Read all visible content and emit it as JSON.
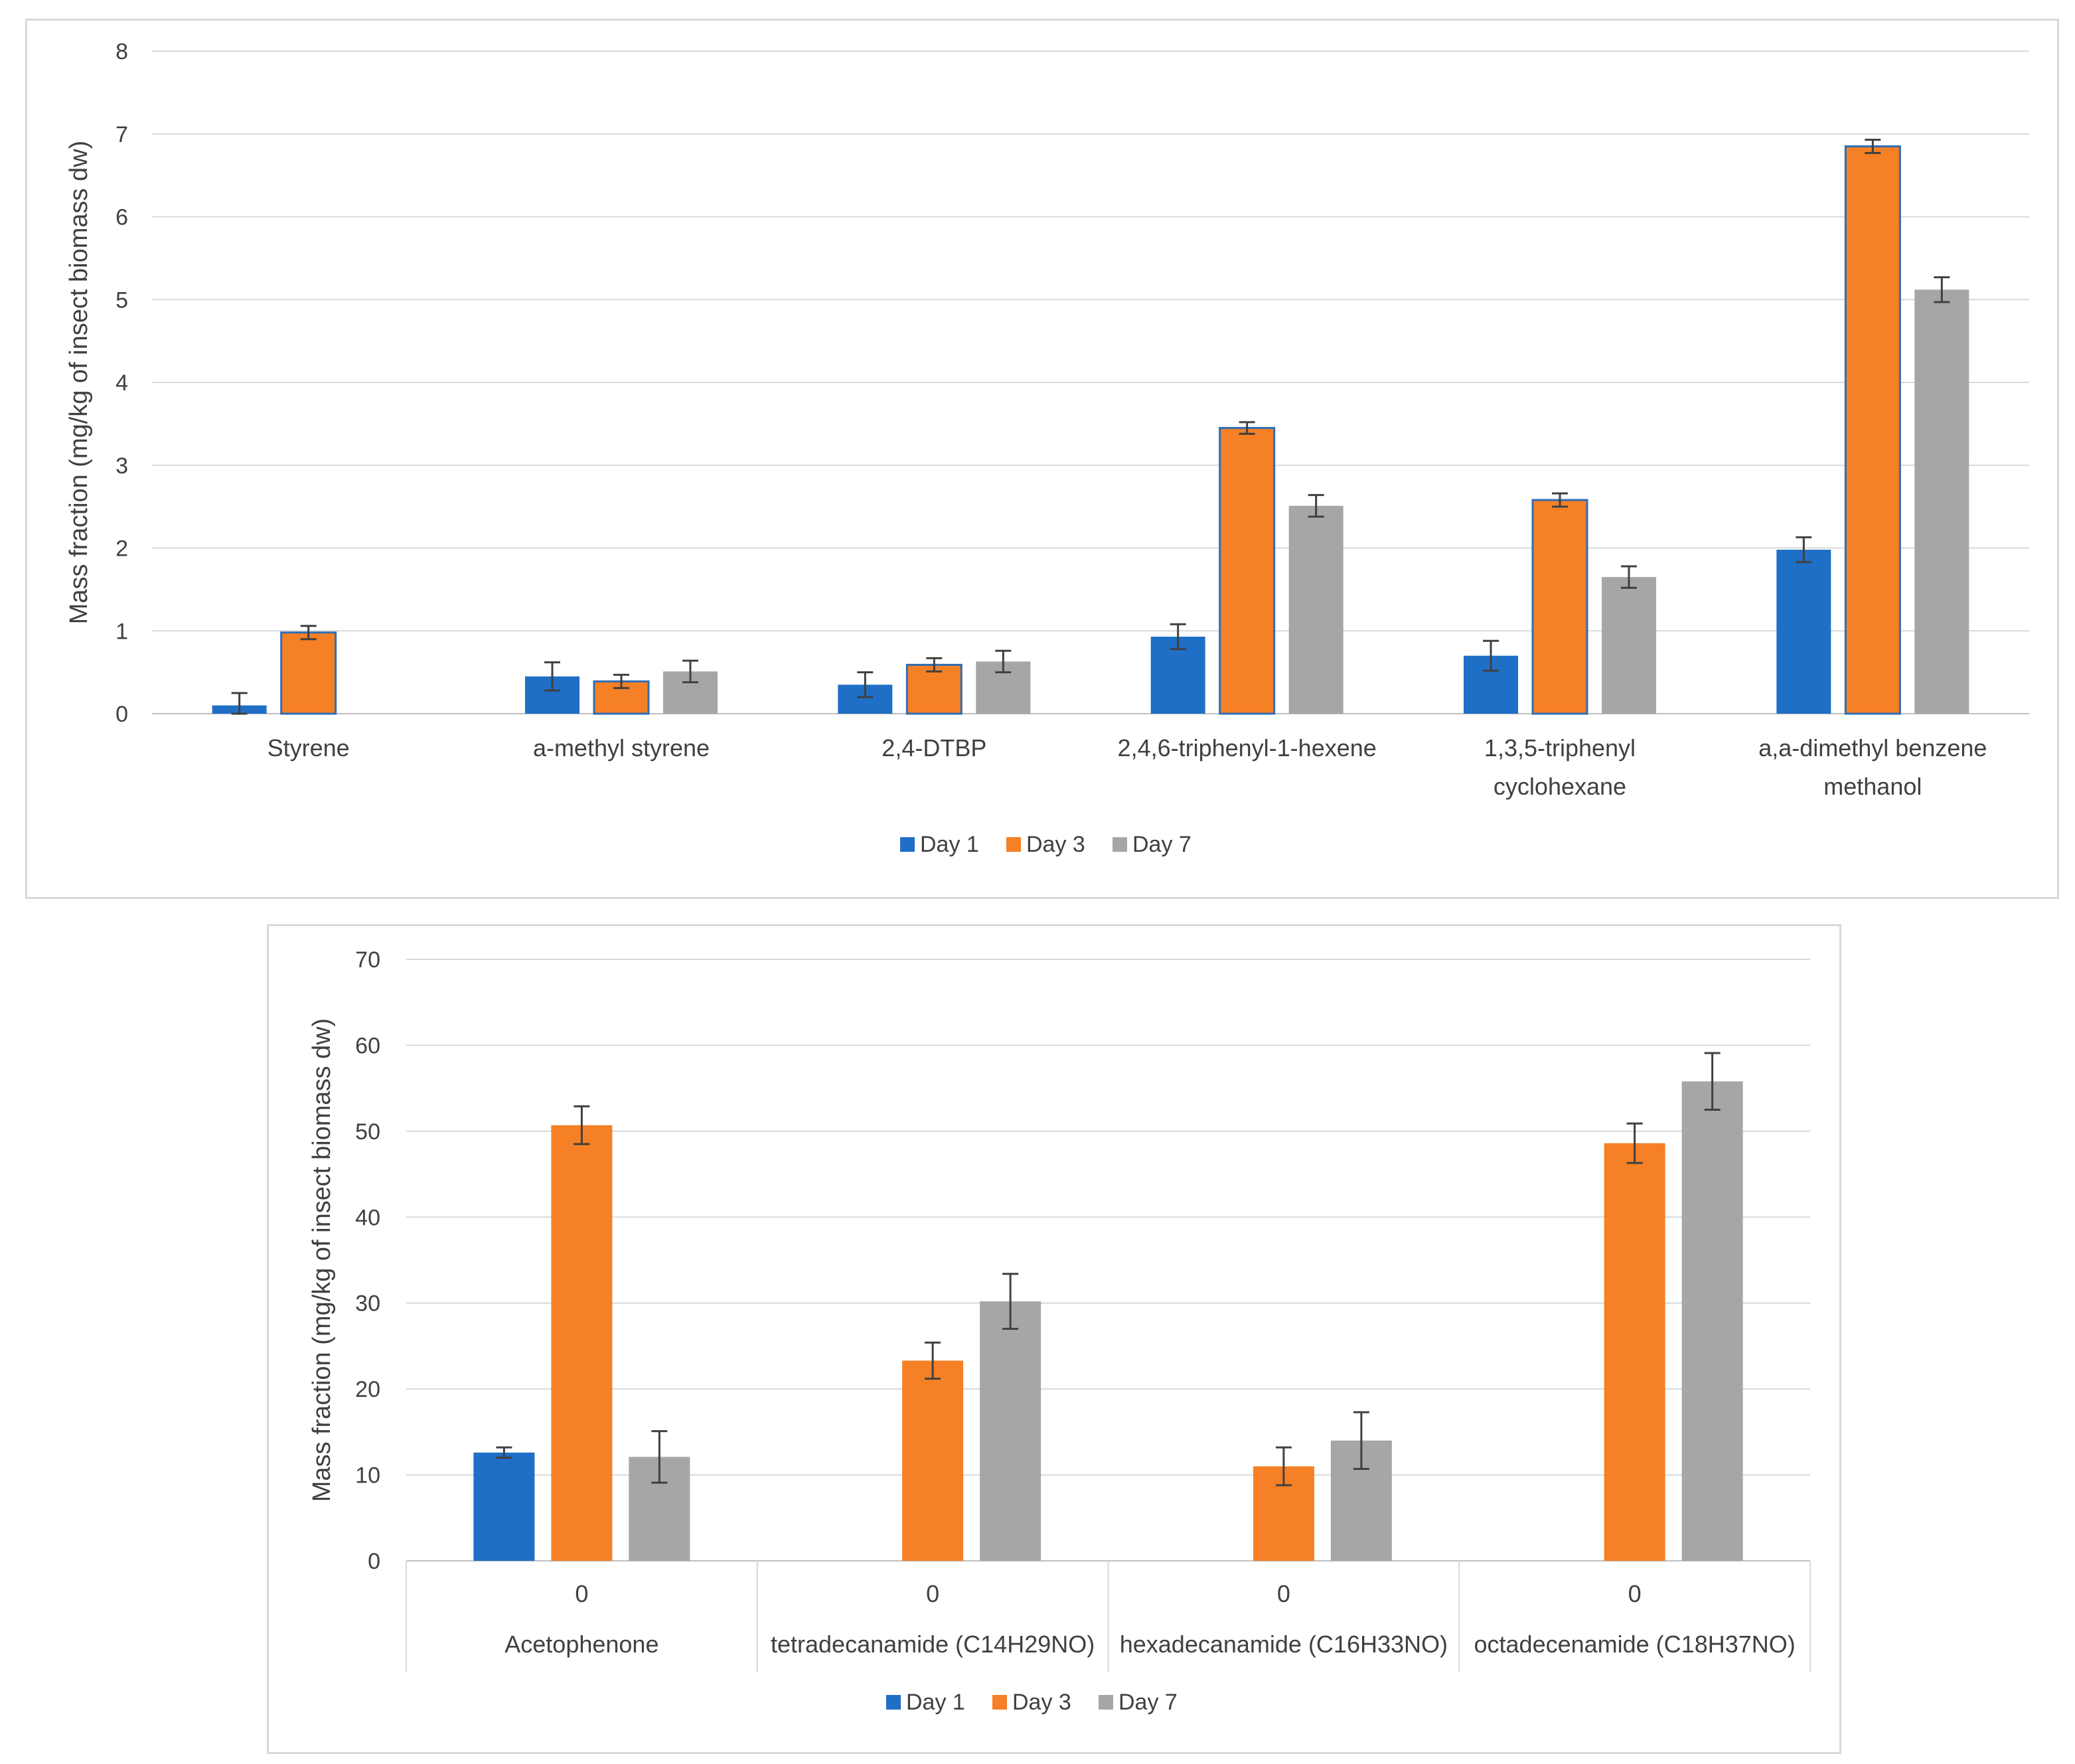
{
  "charts": [
    {
      "id": "top",
      "chart_data": {
        "type": "bar",
        "title": "",
        "ylabel": "Mass fraction (mg/kg of insect biomass dw)",
        "xlabel": "",
        "ylim": [
          0,
          8
        ],
        "yticks": [
          0,
          1,
          2,
          3,
          4,
          5,
          6,
          7,
          8
        ],
        "grid": true,
        "legend_position": "bottom",
        "categories": [
          [
            "Styrene"
          ],
          [
            "a-methyl styrene"
          ],
          [
            "2,4-DTBP"
          ],
          [
            "2,4,6-triphenyl-1-hexene"
          ],
          [
            "1,3,5-triphenyl",
            "cyclohexane"
          ],
          [
            "a,a-dimethyl benzene",
            "methanol"
          ]
        ],
        "series": [
          {
            "name": "Day 1",
            "color": "#1f6fc6",
            "values": [
              0.1,
              0.45,
              0.35,
              0.93,
              0.7,
              1.98
            ],
            "errors": [
              0.15,
              0.17,
              0.15,
              0.15,
              0.18,
              0.15
            ]
          },
          {
            "name": "Day 3",
            "color": "#f58025",
            "values": [
              0.98,
              0.39,
              0.59,
              3.45,
              2.58,
              6.85
            ],
            "errors": [
              0.08,
              0.08,
              0.08,
              0.07,
              0.08,
              0.08
            ]
          },
          {
            "name": "Day 7",
            "color": "#a6a6a6",
            "values": [
              null,
              0.51,
              0.63,
              2.51,
              1.65,
              5.12
            ],
            "errors": [
              null,
              0.13,
              0.13,
              0.13,
              0.13,
              0.15
            ]
          }
        ]
      }
    },
    {
      "id": "bottom",
      "chart_data": {
        "type": "bar",
        "title": "",
        "ylabel": "Mass fraction (mg/kg of insect biomass dw)",
        "xlabel": "",
        "ylim": [
          0,
          70
        ],
        "yticks": [
          0,
          10,
          20,
          30,
          40,
          50,
          60,
          70
        ],
        "grid": true,
        "legend_position": "bottom",
        "category_sublabels": [
          "0",
          "0",
          "0",
          "0"
        ],
        "categories": [
          [
            "Acetophenone"
          ],
          [
            "tetradecanamide (C14H29NO)"
          ],
          [
            "hexadecanamide (C16H33NO)"
          ],
          [
            "octadecenamide (C18H37NO)"
          ]
        ],
        "series": [
          {
            "name": "Day 1",
            "color": "#1f6fc6",
            "values": [
              12.6,
              null,
              null,
              null
            ],
            "errors": [
              0.6,
              null,
              null,
              null
            ]
          },
          {
            "name": "Day 3",
            "color": "#f58025",
            "values": [
              50.7,
              23.3,
              11,
              48.6
            ],
            "errors": [
              2.2,
              2.1,
              2.2,
              2.3
            ]
          },
          {
            "name": "Day 7",
            "color": "#a6a6a6",
            "values": [
              12.1,
              30.2,
              14,
              55.8
            ],
            "errors": [
              3.0,
              3.2,
              3.3,
              3.3
            ]
          }
        ]
      }
    }
  ]
}
